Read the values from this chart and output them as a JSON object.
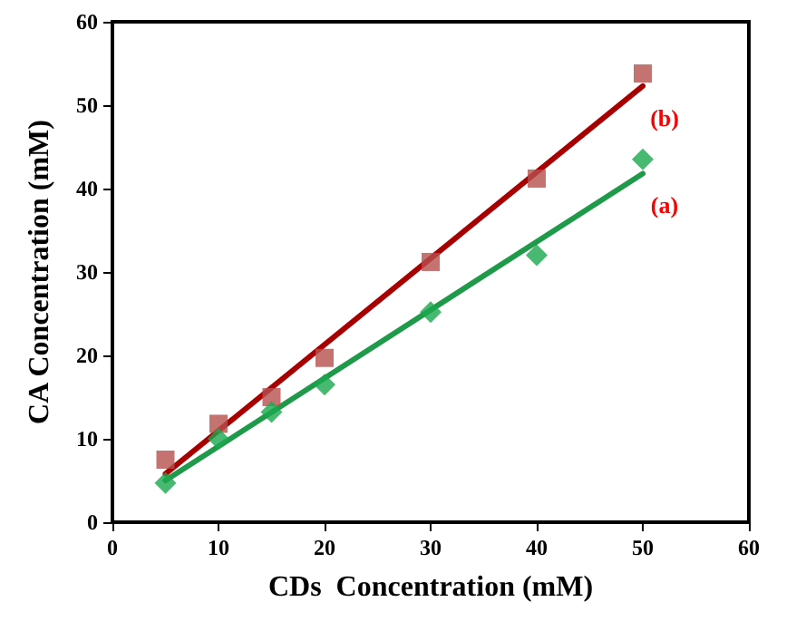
{
  "chart_data": {
    "type": "scatter",
    "xlabel": "CDs  Concentration (mM)",
    "ylabel": "CA Concentration (mM)",
    "xlim": [
      0,
      60
    ],
    "xticks": [
      0,
      10,
      20,
      30,
      40,
      50,
      60
    ],
    "ylim": [
      0,
      60
    ],
    "yticks": [
      0,
      10,
      20,
      30,
      40,
      50,
      60
    ],
    "grid": false,
    "series": [
      {
        "marker": "square",
        "color": "#b5504e",
        "x": [
          5,
          10,
          15,
          20,
          30,
          40,
          50
        ],
        "values": [
          7.5,
          11.8,
          15,
          19.7,
          31.2,
          41.2,
          53.8
        ]
      },
      {
        "marker": "diamond",
        "color": "#1aa84e",
        "x": [
          5,
          10,
          15,
          20,
          30,
          40,
          50
        ],
        "values": [
          4.7,
          10,
          13.2,
          16.5,
          25.2,
          32,
          43.5
        ]
      },
      {
        "type": "line",
        "marker": "none",
        "color": "#a80000",
        "x": [
          5,
          50
        ],
        "values": [
          5.8,
          52.3
        ]
      },
      {
        "type": "line",
        "marker": "none",
        "color": "#1f9a4a",
        "x": [
          5,
          50
        ],
        "values": [
          5,
          41.8
        ]
      }
    ],
    "annotations": [
      "(b)",
      "(a)"
    ]
  }
}
